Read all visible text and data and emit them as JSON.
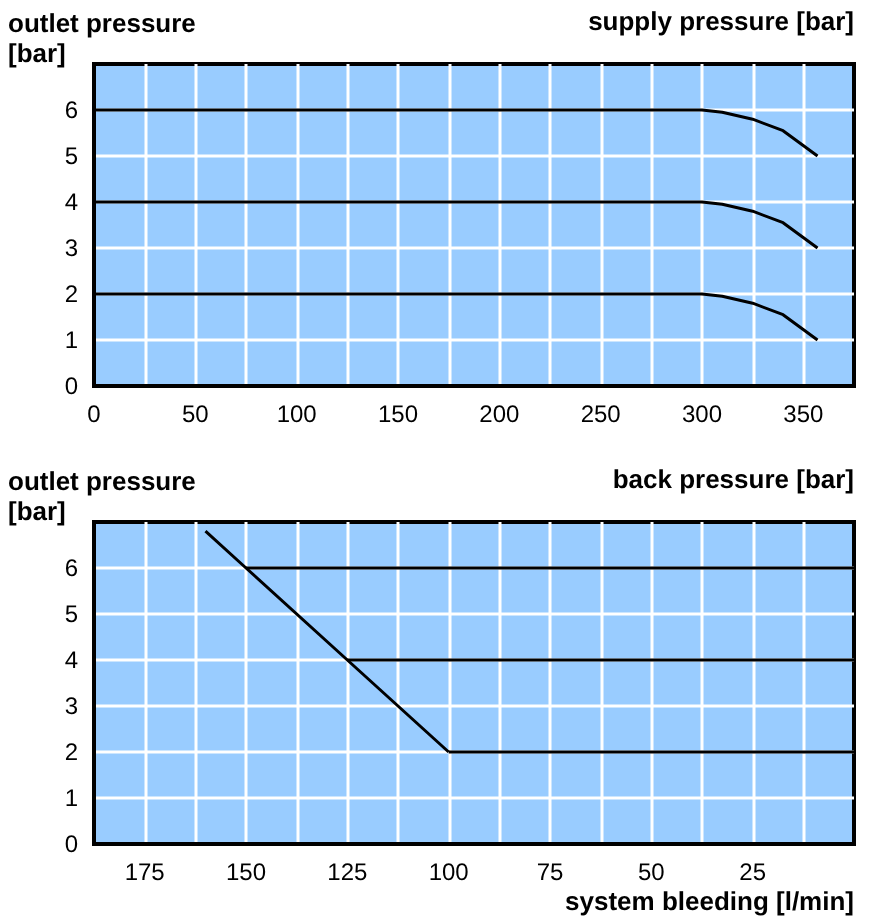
{
  "chart_data": [
    {
      "type": "line",
      "ylabel": "outlet pressure [bar]",
      "annotations": [
        "supply pressure [bar]"
      ],
      "xlim": [
        0,
        375
      ],
      "ylim": [
        0,
        7
      ],
      "xticks": [
        0,
        {
          "value": 25,
          "label": null
        },
        50,
        {
          "value": 75,
          "label": null
        },
        100,
        {
          "value": 125,
          "label": null
        },
        150,
        {
          "value": 175,
          "label": null
        },
        200,
        {
          "value": 225,
          "label": null
        },
        250,
        {
          "value": 275,
          "label": null
        },
        300,
        {
          "value": 325,
          "label": null
        },
        350
      ],
      "yticks": [
        0,
        1,
        2,
        3,
        4,
        5,
        6
      ],
      "grid": true,
      "marker": "none",
      "line_style": "solid",
      "series": [
        {
          "color": "#000000",
          "x": [
            0,
            300,
            310,
            325,
            340,
            357
          ],
          "values": [
            6,
            6,
            5.95,
            5.8,
            5.55,
            5
          ]
        },
        {
          "color": "#000000",
          "x": [
            0,
            300,
            310,
            325,
            340,
            357
          ],
          "values": [
            4,
            4,
            3.95,
            3.8,
            3.55,
            3
          ]
        },
        {
          "color": "#000000",
          "x": [
            0,
            300,
            310,
            325,
            340,
            357
          ],
          "values": [
            2,
            2,
            1.95,
            1.8,
            1.55,
            1
          ]
        }
      ]
    },
    {
      "type": "line",
      "ylabel": "outlet pressure [bar]",
      "xlabel": "system bleeding [l/min]",
      "annotations": [
        "back pressure [bar]"
      ],
      "xlim": [
        187.5,
        0
      ],
      "ylim": [
        0,
        7
      ],
      "xticks": [
        {
          "value": 12.5,
          "label": null
        },
        25,
        {
          "value": 37.5,
          "label": null
        },
        50,
        {
          "value": 62.5,
          "label": null
        },
        75,
        {
          "value": 87.5,
          "label": null
        },
        100,
        {
          "value": 112.5,
          "label": null
        },
        125,
        {
          "value": 137.5,
          "label": null
        },
        150,
        {
          "value": 162.5,
          "label": null
        },
        175
      ],
      "yticks": [
        0,
        1,
        2,
        3,
        4,
        5,
        6
      ],
      "grid": true,
      "marker": "none",
      "line_style": "solid",
      "series": [
        {
          "color": "#000000",
          "x": [
            160,
            150,
            125,
            100
          ],
          "values": [
            6.8,
            6,
            4,
            2
          ]
        },
        {
          "color": "#000000",
          "x": [
            150,
            0
          ],
          "values": [
            6,
            6
          ]
        },
        {
          "color": "#000000",
          "x": [
            125,
            0
          ],
          "values": [
            4,
            4
          ]
        },
        {
          "color": "#000000",
          "x": [
            100,
            0
          ],
          "values": [
            2,
            2
          ]
        }
      ]
    }
  ]
}
